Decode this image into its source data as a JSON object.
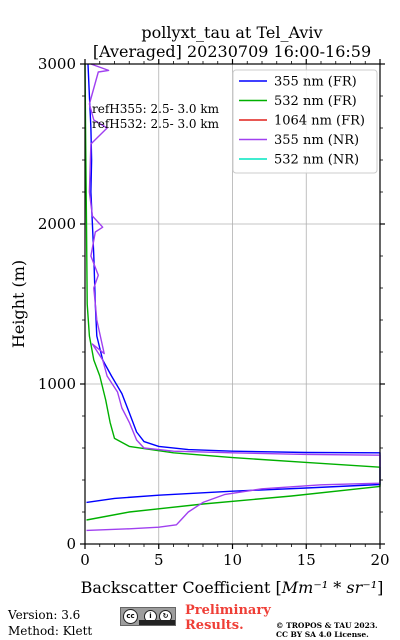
{
  "chart_data": {
    "type": "line",
    "title": "pollyxt_tau at Tel_Aviv",
    "subtitle": "[Averaged] 20230709 16:00-16:59",
    "xlabel": "Backscatter Coefficient [",
    "xlabel_math": "Mm⁻¹ * sr⁻¹",
    "xlabel_close": "]",
    "ylabel": "Height (m)",
    "xlim": [
      0,
      20
    ],
    "ylim": [
      0,
      3000
    ],
    "xticks": [
      0,
      5,
      10,
      15,
      20
    ],
    "yticks": [
      0,
      1000,
      2000,
      3000
    ],
    "grid": true,
    "legend_position": "top-right",
    "annotations": [
      "refH355:  2.5- 3.0 km",
      "refH532:  2.5- 3.0 km"
    ],
    "series": [
      {
        "name": "355 nm (FR)",
        "color": "#0000ff",
        "points": [
          [
            0.1,
            260
          ],
          [
            2,
            285
          ],
          [
            5,
            305
          ],
          [
            10,
            330
          ],
          [
            15,
            350
          ],
          [
            20,
            372
          ],
          [
            20,
            570
          ],
          [
            15,
            572
          ],
          [
            10,
            580
          ],
          [
            7,
            590
          ],
          [
            5,
            610
          ],
          [
            4,
            640
          ],
          [
            3.5,
            700
          ],
          [
            3,
            820
          ],
          [
            2.5,
            940
          ],
          [
            1.8,
            1050
          ],
          [
            1.2,
            1150
          ],
          [
            0.8,
            1300
          ],
          [
            0.7,
            1500
          ],
          [
            0.6,
            1800
          ],
          [
            0.5,
            2000
          ],
          [
            0.4,
            2200
          ],
          [
            0.45,
            2400
          ],
          [
            0.4,
            2600
          ],
          [
            0.3,
            2800
          ],
          [
            0.2,
            3000
          ]
        ]
      },
      {
        "name": "532 nm (FR)",
        "color": "#00b000",
        "points": [
          [
            0.1,
            150
          ],
          [
            3,
            200
          ],
          [
            8,
            250
          ],
          [
            14,
            300
          ],
          [
            20,
            360
          ],
          [
            20,
            480
          ],
          [
            15,
            510
          ],
          [
            10,
            540
          ],
          [
            6,
            570
          ],
          [
            3,
            610
          ],
          [
            2,
            660
          ],
          [
            1.7,
            760
          ],
          [
            1.4,
            900
          ],
          [
            1,
            1050
          ],
          [
            0.6,
            1150
          ],
          [
            0.3,
            1300
          ],
          [
            0.15,
            1500
          ],
          [
            0.1,
            2000
          ],
          [
            0.05,
            2500
          ],
          [
            0,
            3000
          ]
        ]
      },
      {
        "name": "1064 nm (FR)",
        "color": "#e0201c",
        "points": []
      },
      {
        "name": "355 nm (NR)",
        "color": "#a040f0",
        "points": [
          [
            0.1,
            85
          ],
          [
            3,
            95
          ],
          [
            5,
            105
          ],
          [
            6.2,
            120
          ],
          [
            6.5,
            150
          ],
          [
            7,
            200
          ],
          [
            8,
            260
          ],
          [
            9.5,
            310
          ],
          [
            12,
            345
          ],
          [
            16,
            370
          ],
          [
            20,
            380
          ],
          [
            20,
            555
          ],
          [
            15,
            560
          ],
          [
            10,
            570
          ],
          [
            6,
            580
          ],
          [
            4,
            600
          ],
          [
            3.5,
            650
          ],
          [
            3,
            760
          ],
          [
            2.5,
            850
          ],
          [
            2.2,
            950
          ],
          [
            1.5,
            1050
          ],
          [
            1.2,
            1150
          ],
          [
            0.5,
            1250
          ],
          [
            1.3,
            1190
          ],
          [
            0.8,
            1400
          ],
          [
            0.6,
            1600
          ],
          [
            0.9,
            1680
          ],
          [
            0.4,
            1800
          ],
          [
            0.7,
            1950
          ],
          [
            1.2,
            1980
          ],
          [
            0.5,
            2050
          ],
          [
            0.3,
            2200
          ],
          [
            0.4,
            2500
          ],
          [
            1.5,
            2600
          ],
          [
            0.6,
            2650
          ],
          [
            0.3,
            2750
          ],
          [
            0.9,
            2950
          ],
          [
            1.6,
            2960
          ],
          [
            0.4,
            3000
          ]
        ]
      },
      {
        "name": "532 nm (NR)",
        "color": "#00e6c0",
        "points": []
      }
    ]
  },
  "footer": {
    "version": "Version: 3.6",
    "method": "Method: Klett",
    "prelim_line1": "Preliminary",
    "prelim_line2": "Results.",
    "copyright_line1": "© TROPOS & TAU 2023.",
    "copyright_line2": "CC BY SA 4.0 License."
  }
}
